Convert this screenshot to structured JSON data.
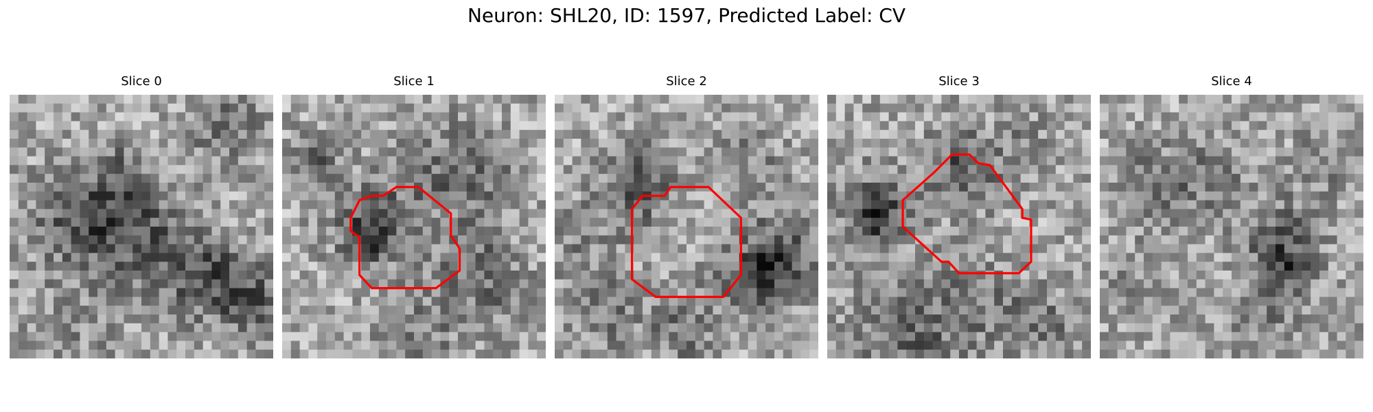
{
  "figure": {
    "title": "Neuron: SHL20, ID: 1597, Predicted Label: CV"
  },
  "colors": {
    "contour": "#ff0000",
    "background": "#ffffff"
  },
  "slices": [
    {
      "label": "Slice 0",
      "has_contour": false
    },
    {
      "label": "Slice 1",
      "has_contour": true
    },
    {
      "label": "Slice 2",
      "has_contour": true
    },
    {
      "label": "Slice 3",
      "has_contour": true
    },
    {
      "label": "Slice 4",
      "has_contour": false
    }
  ]
}
